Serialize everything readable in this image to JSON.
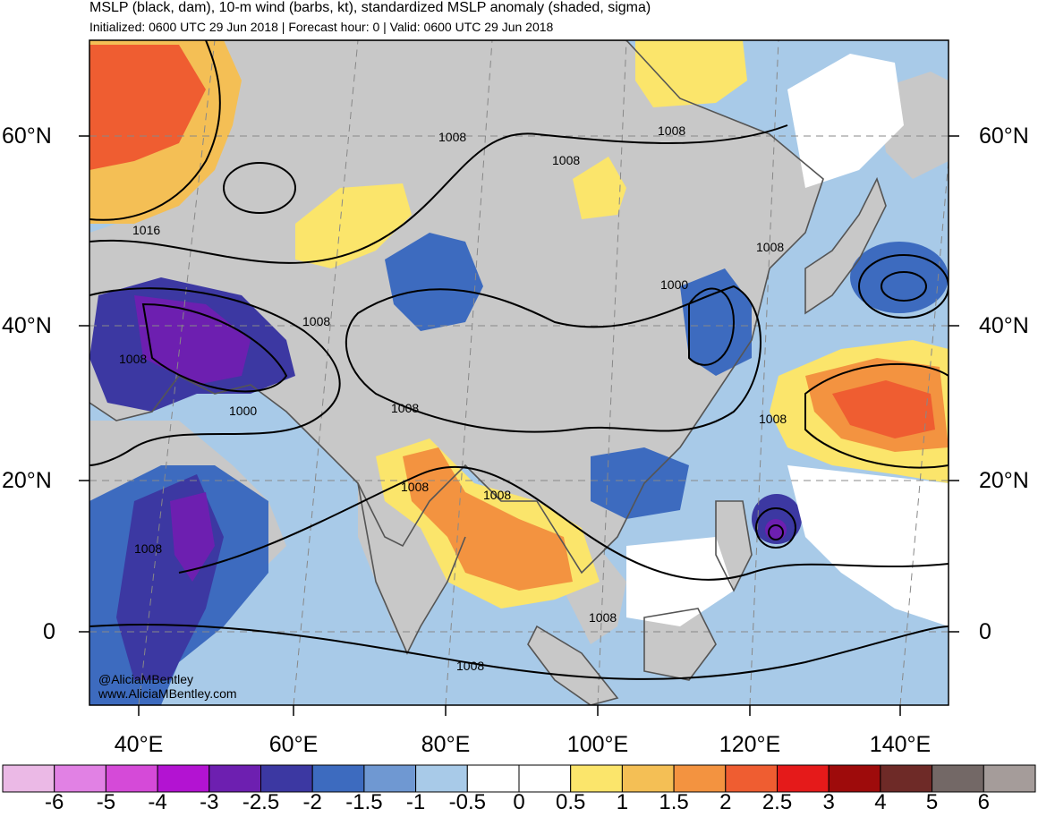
{
  "title": {
    "line1": "MSLP (black, dam), 10-m wind (barbs, kt), standardized MSLP anomaly (shaded, sigma)",
    "line2": "Initialized: 0600 UTC 29 Jun 2018 | Forecast hour: 0 | Valid: 0600 UTC 29 Jun 2018"
  },
  "axes": {
    "lat_left": [
      "60°N",
      "40°N",
      "20°N",
      "0"
    ],
    "lat_right": [
      "60°N",
      "40°N",
      "20°N",
      "0"
    ],
    "lon": [
      "40°E",
      "60°E",
      "80°E",
      "100°E",
      "120°E",
      "140°E"
    ]
  },
  "contour_labels": [
    "1008",
    "1008",
    "1016",
    "1008",
    "1008",
    "1008",
    "1000",
    "1008",
    "1008",
    "1000",
    "1008",
    "1008",
    "1008",
    "1008",
    "1008",
    "1008"
  ],
  "credit": {
    "handle": "@AliciaMBentley",
    "site": "www.AliciaMBentley.com"
  },
  "colorbar": {
    "labels": [
      "-6",
      "-5",
      "-4",
      "-3",
      "-2.5",
      "-2",
      "-1.5",
      "-1",
      "-0.5",
      "0",
      "0.5",
      "1",
      "1.5",
      "2",
      "2.5",
      "3",
      "4",
      "5",
      "6"
    ],
    "colors": [
      "#ebb9e6",
      "#e181e4",
      "#d54ad8",
      "#b313d2",
      "#6d1fb0",
      "#3c38a2",
      "#3d6bbf",
      "#6f98d2",
      "#a8cae8",
      "#ffffff",
      "#ffffff",
      "#fbe56b",
      "#f4bf55",
      "#f39340",
      "#ef5d31",
      "#e51a1a",
      "#9e0b0b",
      "#6e2a27",
      "#736866",
      "#a59c9a"
    ]
  },
  "colors": {
    "land": "#c8c8c8",
    "coast": "#555555",
    "contour": "#000000"
  }
}
